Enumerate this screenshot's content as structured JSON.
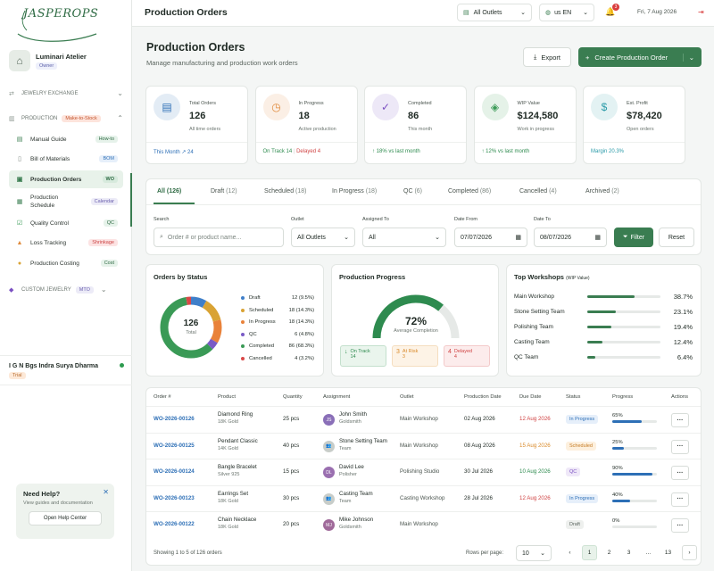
{
  "brand": {
    "logo_text": "JASPEROPS"
  },
  "store": {
    "name": "Luminari Atelier",
    "role": "Owner"
  },
  "sidebar": {
    "sections": [
      {
        "label": "JEWELRY EXCHANGE"
      },
      {
        "label": "PRODUCTION",
        "tag": "Make-to-Stock"
      },
      {
        "label": "CUSTOM JEWELRY",
        "tag": "MTO"
      }
    ],
    "items": [
      {
        "label": "Manual Guide",
        "tag": "How-to",
        "icon": "book-icon"
      },
      {
        "label": "Bill of Materials",
        "tag": "BOM",
        "icon": "document-icon"
      },
      {
        "label": "Production Orders",
        "tag": "WO",
        "icon": "clipboard-icon"
      },
      {
        "label": "Production Schedule",
        "tag": "Calendar",
        "icon": "calendar-icon"
      },
      {
        "label": "Quality Control",
        "tag": "QC",
        "icon": "check-icon"
      },
      {
        "label": "Loss Tracking",
        "tag": "Shrinkage",
        "icon": "warning-icon"
      },
      {
        "label": "Production Costing",
        "tag": "Cost",
        "icon": "coin-icon"
      }
    ]
  },
  "user": {
    "name": "I G N Bgs Indra Surya Dharma",
    "plan": "Trial"
  },
  "help": {
    "title": "Need Help?",
    "desc": "View guides and documentation",
    "button": "Open Help Center"
  },
  "topbar": {
    "title": "Production Orders",
    "outlet": "All Outlets",
    "locale": "us EN",
    "notif_count": "3",
    "date": "Fri, 7 Aug 2026"
  },
  "header": {
    "title": "Production Orders",
    "subtitle": "Manage manufacturing and production work orders",
    "export_label": "Export",
    "create_label": "Create Production Order"
  },
  "stats": [
    {
      "label": "Total Orders",
      "value": "126",
      "sub": "All time orders",
      "foot1": "This Month ↗ 24",
      "foot2": "",
      "color": "#2d6fb6"
    },
    {
      "label": "In Progress",
      "value": "18",
      "sub": "Active production",
      "foot1": "On Track 14",
      "foot2": "Delayed 4",
      "color": "#e08a3b"
    },
    {
      "label": "Completed",
      "value": "86",
      "sub": "This month",
      "foot1": "↑ 18% vs last month",
      "foot2": "",
      "color": "#7a4fc2"
    },
    {
      "label": "WIP Value",
      "value": "$124,580",
      "sub": "Work in progress",
      "foot1": "↑ 12% vs last month",
      "foot2": "",
      "color": "#3a9a56"
    },
    {
      "label": "Est. Profit",
      "value": "$78,420",
      "sub": "Open orders",
      "foot1": "Margin 20.3%",
      "foot2": "",
      "color": "#2a9aa8"
    }
  ],
  "tabs": [
    {
      "label": "All",
      "count": "(126)"
    },
    {
      "label": "Draft",
      "count": "(12)"
    },
    {
      "label": "Scheduled",
      "count": "(18)"
    },
    {
      "label": "In Progress",
      "count": "(18)"
    },
    {
      "label": "QC",
      "count": "(6)"
    },
    {
      "label": "Completed",
      "count": "(86)"
    },
    {
      "label": "Cancelled",
      "count": "(4)"
    },
    {
      "label": "Archived",
      "count": "(2)"
    }
  ],
  "filters": {
    "search_label": "Search",
    "search_placeholder": "Order # or product name...",
    "outlet_label": "Outlet",
    "outlet_value": "All Outlets",
    "assigned_label": "Assigned To",
    "assigned_value": "All",
    "from_label": "Date From",
    "from_value": "07/07/2026",
    "to_label": "Date To",
    "to_value": "08/07/2026",
    "filter_btn": "Filter",
    "reset_btn": "Reset"
  },
  "orders_by_status": {
    "title": "Orders by Status",
    "total": "126",
    "total_label": "Total",
    "items": [
      {
        "label": "Draft",
        "value": "12 (9.5%)",
        "count": 12,
        "color": "#3f7fc9"
      },
      {
        "label": "Scheduled",
        "value": "18 (14.3%)",
        "count": 18,
        "color": "#d9a334"
      },
      {
        "label": "In Progress",
        "value": "18 (14.3%)",
        "count": 18,
        "color": "#e9823a"
      },
      {
        "label": "QC",
        "value": "6 (4.8%)",
        "count": 6,
        "color": "#7a5bc6"
      },
      {
        "label": "Completed",
        "value": "86 (68.3%)",
        "count": 86,
        "color": "#3a9a56"
      },
      {
        "label": "Cancelled",
        "value": "4 (3.2%)",
        "count": 4,
        "color": "#d94848"
      }
    ]
  },
  "progress": {
    "title": "Production Progress",
    "value": "72%",
    "value_num": 72,
    "label": "Average Completion",
    "boxes": [
      {
        "label": "On Track",
        "value": "14",
        "color": "#2e8b4f",
        "bg": "#eaf5ed",
        "icon": "↓"
      },
      {
        "label": "At Risk",
        "value": "3",
        "color": "#d98a2a",
        "bg": "#fdf3e6",
        "icon": "3"
      },
      {
        "label": "Delayed",
        "value": "4",
        "color": "#d04444",
        "bg": "#fcecec",
        "icon": "4"
      }
    ]
  },
  "workshops": {
    "title": "Top Workshops",
    "title_sub": "(WIP Value)",
    "items": [
      {
        "name": "Main Workshop",
        "pct": "38.7%",
        "value": 38.7
      },
      {
        "name": "Stone Setting Team",
        "pct": "23.1%",
        "value": 23.1
      },
      {
        "name": "Polishing Team",
        "pct": "19.4%",
        "value": 19.4
      },
      {
        "name": "Casting Team",
        "pct": "12.4%",
        "value": 12.4
      },
      {
        "name": "QC Team",
        "pct": "6.4%",
        "value": 6.4
      }
    ]
  },
  "table": {
    "headers": [
      "Order #",
      "Product",
      "Quantity",
      "Assignment",
      "Outlet",
      "Production Date",
      "Due Date",
      "Status",
      "Progress",
      "Actions"
    ],
    "rows": [
      {
        "order": "WO-2026-00126",
        "product": "Diamond Ring",
        "material": "18K Gold",
        "qty": "25 pcs",
        "assignee": "John Smith",
        "role": "Goldsmith",
        "initials": "JS",
        "av_color": "#8a6fb8",
        "outlet": "Main Workshop",
        "prod_date": "02 Aug 2026",
        "due": "12 Aug 2026",
        "due_color": "#d04444",
        "status": "In Progress",
        "st_bg": "#e6effa",
        "st_fg": "#2d6fb6",
        "progress": "65%",
        "pval": 65
      },
      {
        "order": "WO-2026-00125",
        "product": "Pendant Classic",
        "material": "14K Gold",
        "qty": "40 pcs",
        "assignee": "Stone Setting Team",
        "role": "Team",
        "initials": "👥",
        "av_color": "#c8cdc9",
        "outlet": "Main Workshop",
        "prod_date": "08 Aug 2026",
        "due": "15 Aug 2026",
        "due_color": "#d98a2a",
        "status": "Scheduled",
        "st_bg": "#fdf0de",
        "st_fg": "#c47a23",
        "progress": "25%",
        "pval": 25
      },
      {
        "order": "WO-2026-00124",
        "product": "Bangle Bracelet",
        "material": "Silver 925",
        "qty": "15 pcs",
        "assignee": "David Lee",
        "role": "Polisher",
        "initials": "DL",
        "av_color": "#9a6fb0",
        "outlet": "Polishing Studio",
        "prod_date": "30 Jul 2026",
        "due": "10 Aug 2026",
        "due_color": "#2e8b4f",
        "status": "QC",
        "st_bg": "#efe8f8",
        "st_fg": "#7a4fc2",
        "progress": "90%",
        "pval": 90
      },
      {
        "order": "WO-2026-00123",
        "product": "Earrings Set",
        "material": "18K Gold",
        "qty": "30 pcs",
        "assignee": "Casting Team",
        "role": "Team",
        "initials": "👥",
        "av_color": "#c8cdc9",
        "outlet": "Casting Workshop",
        "prod_date": "28 Jul 2026",
        "due": "12 Aug 2026",
        "due_color": "#d04444",
        "status": "In Progress",
        "st_bg": "#e6effa",
        "st_fg": "#2d6fb6",
        "progress": "40%",
        "pval": 40
      },
      {
        "order": "WO-2026-00122",
        "product": "Chain Necklace",
        "material": "18K Gold",
        "qty": "20 pcs",
        "assignee": "Mike Johnson",
        "role": "Goldsmith",
        "initials": "MJ",
        "av_color": "#a06a9a",
        "outlet": "Main Workshop",
        "prod_date": "",
        "due": "",
        "due_color": "#333",
        "status": "Draft",
        "st_bg": "#eef0ee",
        "st_fg": "#5a645e",
        "progress": "0%",
        "pval": 0
      }
    ],
    "showing": "Showing 1 to 5 of 126 orders",
    "rows_per_page_label": "Rows per page:",
    "rows_per_page": "10",
    "pages": [
      "1",
      "2",
      "3",
      "...",
      "13"
    ]
  }
}
